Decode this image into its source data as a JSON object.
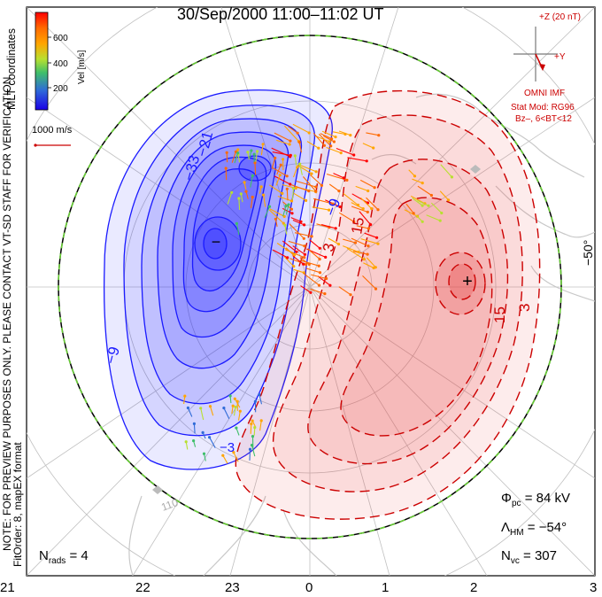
{
  "header": {
    "title": "30/Sep/2000 11:00–11:02 UT"
  },
  "side_notes": {
    "coords": "MLT coordinates",
    "preview": "NOTE: FOR PREVIEW PURPOSES ONLY. PLEASE CONTACT VT-SD STAFF FOR VERIFICATION.",
    "fit": "FitOrder: 8, mapEX format"
  },
  "colorbar": {
    "label": "Vel [m/s]",
    "ticks": [
      "600",
      "400",
      "200"
    ],
    "colors": [
      "#1a00e6",
      "#2f6bd8",
      "#3fbf6a",
      "#b8e030",
      "#ffa500",
      "#ff6a00",
      "#ff0000"
    ]
  },
  "vector_scale": {
    "label": "1000 m/s",
    "color": "#cc0000"
  },
  "imf": {
    "magnitude": "+Z (20 nT)",
    "y_axis": "+Y",
    "source": "OMNI IMF",
    "model": "Stat Mod: RG96",
    "condition": "Bz–, 6<BT<12",
    "color": "#cc0000"
  },
  "contour_labels": {
    "negative": [
      "−33",
      "−21",
      "−9",
      "−9",
      "−3"
    ],
    "positive": [
      "15",
      "3",
      "15",
      "3"
    ],
    "min_marker": "−",
    "max_marker": "+"
  },
  "stats": {
    "phi_symbol": "Φ",
    "phi_sub": "pc",
    "phi_value": "= 84 kV",
    "lambda_symbol": "Λ",
    "lambda_sub": "HM",
    "lambda_value": "= −54°",
    "nvc_symbol": "N",
    "nvc_sub": "vc",
    "nvc_value": "= 307",
    "nrads_symbol": "N",
    "nrads_sub": "rads",
    "nrads_value": "= 4"
  },
  "latitude_label": "−50°",
  "mlt_ticks": [
    "21",
    "22",
    "23",
    "0",
    "1",
    "2",
    "3"
  ],
  "grid_labels": [
    "110"
  ],
  "colors": {
    "negative_potential": "#1a1aff",
    "positive_potential": "#cc0000",
    "hm_boundary": "#66cc33"
  }
}
